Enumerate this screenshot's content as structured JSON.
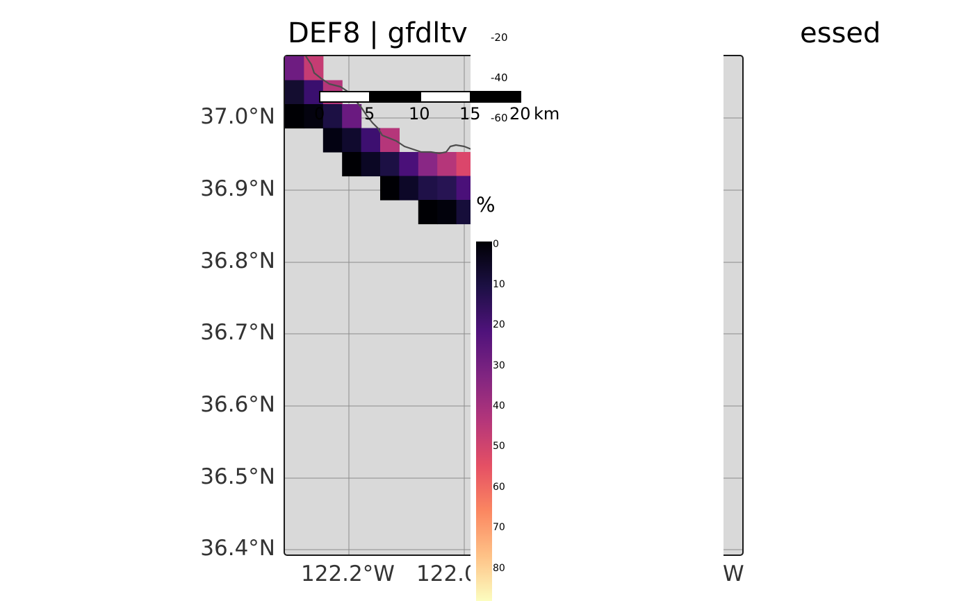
{
  "title": "DEF8 | gfdltv",
  "title_suffix": "essed",
  "y_axis_labels": [
    "37.0°N",
    "36.9°N",
    "36.8°N",
    "36.7°N",
    "36.6°N",
    "36.5°N",
    "36.4°N"
  ],
  "x_axis_labels": [
    "122.2°W",
    "122.0",
    "W"
  ],
  "scale_bar": {
    "labels": [
      "0",
      "5",
      "10",
      "15",
      "20"
    ],
    "unit": "km"
  },
  "small_ticks": [
    "-20",
    "-40",
    "-60"
  ],
  "legend": {
    "title": "%",
    "ticks": [
      "0",
      "10",
      "20",
      "30",
      "40",
      "50",
      "60",
      "70",
      "80"
    ],
    "colors": [
      "#000004",
      "#1c1044",
      "#4f127b",
      "#812581",
      "#b5367a",
      "#e55064",
      "#fb8761",
      "#fec287",
      "#fcfdbf"
    ]
  },
  "colors": {
    "panel": "#d9d9d9",
    "coast": "#4d4d4d",
    "grid": "#8c8c8c"
  },
  "grid_cells": [
    [
      0,
      0,
      "#6e1c81"
    ],
    [
      1,
      0,
      "#c53c73"
    ],
    [
      0,
      1,
      "#140d30"
    ],
    [
      1,
      1,
      "#3a0f6e"
    ],
    [
      2,
      1,
      "#b5367a"
    ],
    [
      0,
      2,
      "#000004"
    ],
    [
      1,
      2,
      "#04030f"
    ],
    [
      2,
      2,
      "#1c1044"
    ],
    [
      3,
      2,
      "#6a1a80"
    ],
    [
      2,
      3,
      "#030212"
    ],
    [
      3,
      3,
      "#100a2e"
    ],
    [
      4,
      3,
      "#3d0f70"
    ],
    [
      5,
      3,
      "#b5367a"
    ],
    [
      3,
      4,
      "#000004"
    ],
    [
      4,
      4,
      "#0b0724"
    ],
    [
      5,
      4,
      "#1c1044"
    ],
    [
      6,
      4,
      "#4a1079"
    ],
    [
      7,
      4,
      "#892785"
    ],
    [
      8,
      4,
      "#b5367a"
    ],
    [
      9,
      4,
      "#db466b"
    ],
    [
      5,
      5,
      "#000004"
    ],
    [
      6,
      5,
      "#0d0828"
    ],
    [
      7,
      5,
      "#1f1148"
    ],
    [
      8,
      5,
      "#271453"
    ],
    [
      9,
      5,
      "#4a1079"
    ],
    [
      7,
      6,
      "#000004"
    ],
    [
      8,
      6,
      "#02020c"
    ],
    [
      9,
      6,
      "#160e3a"
    ]
  ]
}
